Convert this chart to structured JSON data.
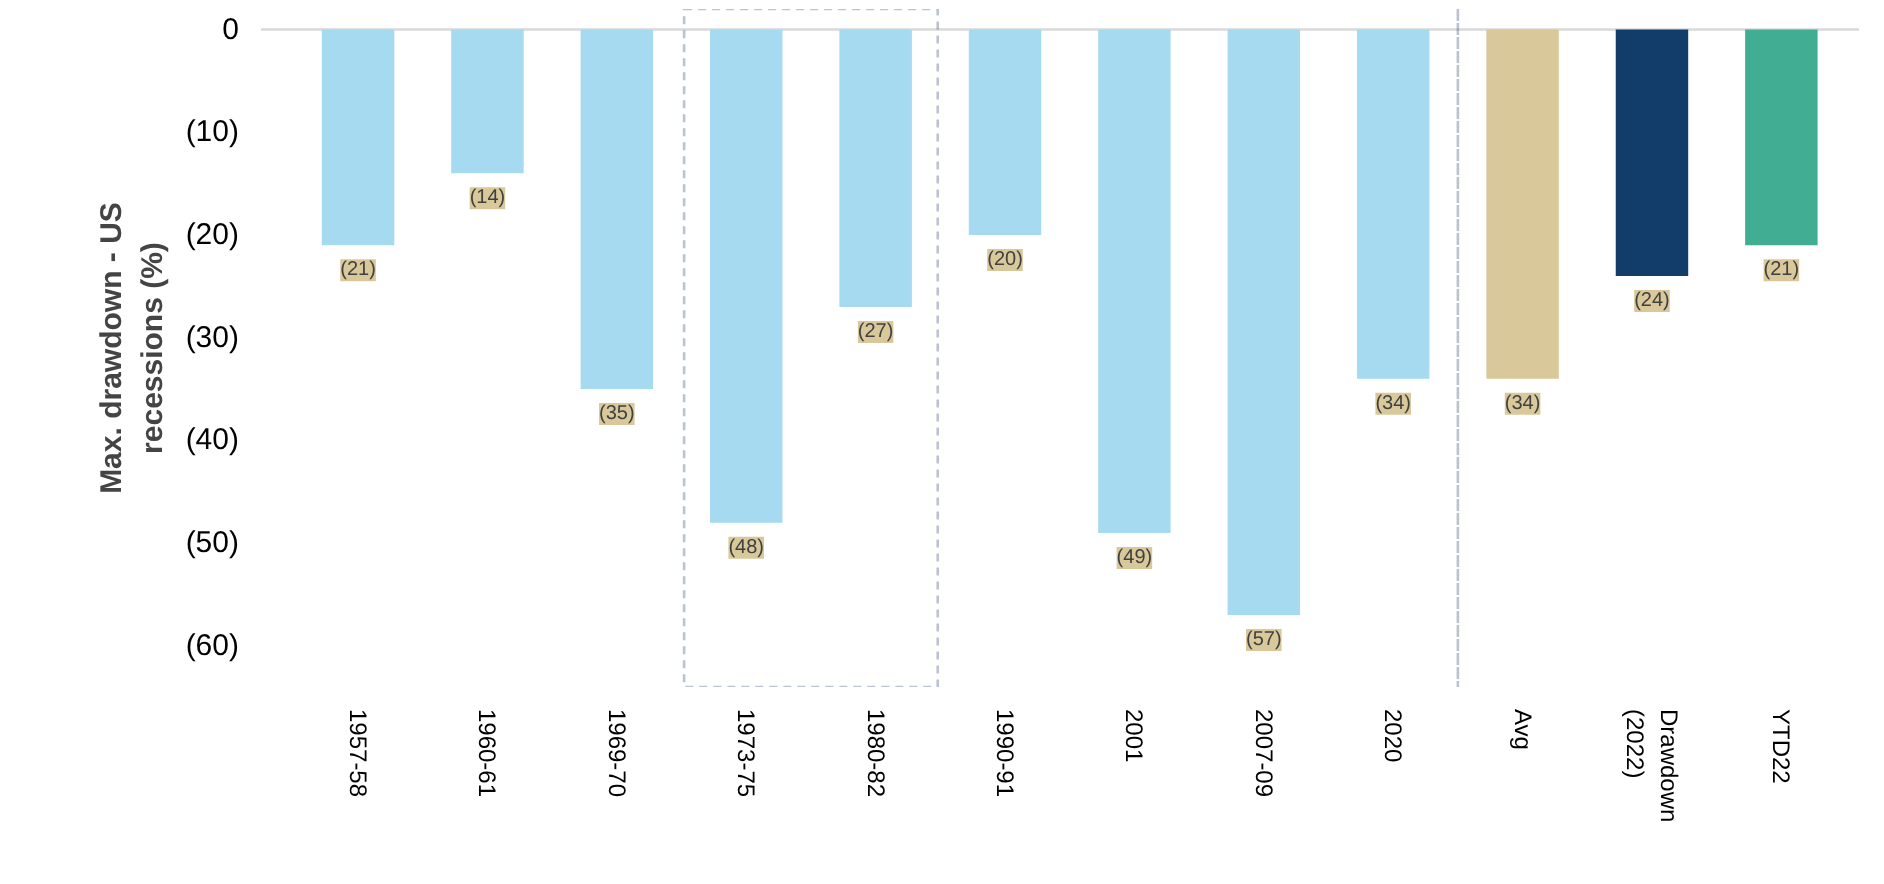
{
  "chart_data": {
    "type": "bar",
    "ylabel": "Max. drawdown - US\nrecessions (%)",
    "categories": [
      "1957-58",
      "1960-61",
      "1969-70",
      "1973-75",
      "1980-82",
      "1990-91",
      "2001",
      "2007-09",
      "2020",
      "Avg",
      "Drawdown\n(2022)",
      "YTD22"
    ],
    "values": [
      -21,
      -14,
      -35,
      -48,
      -27,
      -20,
      -49,
      -57,
      -34,
      -34,
      -24,
      -21
    ],
    "colors": [
      "#a6daf0",
      "#a6daf0",
      "#a6daf0",
      "#a6daf0",
      "#a6daf0",
      "#a6daf0",
      "#a6daf0",
      "#a6daf0",
      "#a6daf0",
      "#d9c89a",
      "#123d6a",
      "#41ad93"
    ],
    "value_labels": [
      "(21)",
      "(14)",
      "(35)",
      "(48)",
      "(27)",
      "(20)",
      "(49)",
      "(57)",
      "(34)",
      "(34)",
      "(24)",
      "(21)"
    ],
    "ylim": [
      -64,
      2
    ],
    "yticks": [
      {
        "value": 0,
        "label": "0"
      },
      {
        "value": -10,
        "label": "(10)"
      },
      {
        "value": -20,
        "label": "(20)"
      },
      {
        "value": -30,
        "label": "(30)"
      },
      {
        "value": -40,
        "label": "(40)"
      },
      {
        "value": -50,
        "label": "(50)"
      },
      {
        "value": -60,
        "label": "(60)"
      }
    ],
    "ref_lines": [
      {
        "axis": "y",
        "value": 0,
        "color": "#d9d9d9",
        "line_style": "solid"
      }
    ],
    "grid": false
  }
}
